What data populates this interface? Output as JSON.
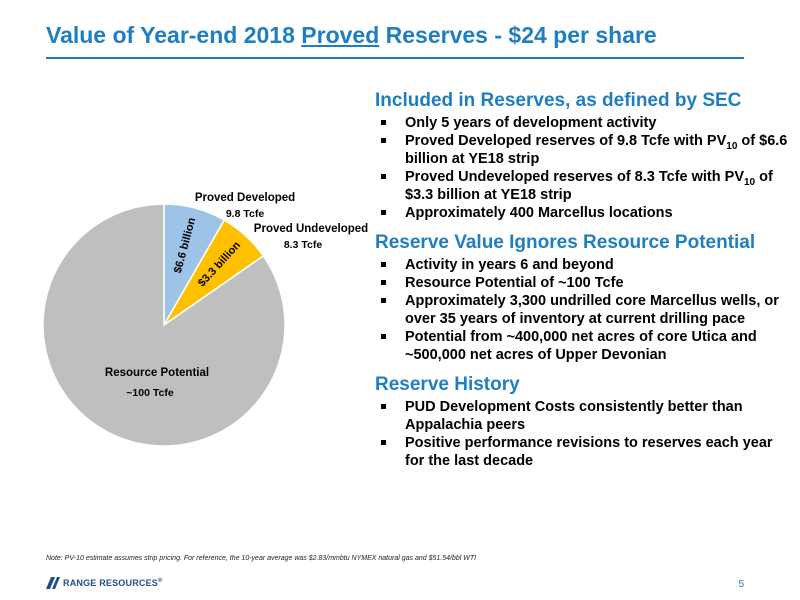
{
  "title": {
    "part1": "Value of Year-end 2018 ",
    "underlined": "Proved",
    "part2": " Reserves - $24 per share"
  },
  "chart_data": {
    "type": "pie",
    "unit": "Tcfe",
    "slices": [
      {
        "name": "Proved Developed",
        "value": 9.8,
        "value_label": "9.8 Tcfe",
        "inner_label": "$6.6 billion",
        "color": "#9dc3e6"
      },
      {
        "name": "Proved Undeveloped",
        "value": 8.3,
        "value_label": "8.3 Tcfe",
        "inner_label": "$3.3 billion",
        "color": "#ffc000"
      },
      {
        "name": "Resource Potential",
        "value": 100,
        "value_label": "~100 Tcfe",
        "inner_label": "",
        "color": "#bfbfbf"
      }
    ],
    "colors": {
      "background": "#ffffff"
    }
  },
  "sections": [
    {
      "heading": "Included in Reserves, as defined by SEC",
      "bullets": [
        {
          "text": "Only 5 years of development activity"
        },
        {
          "text": "Proved Developed reserves of 9.8 Tcfe with PV",
          "sub": "10",
          "tail": " of $6.6 billion at YE18 strip"
        },
        {
          "text": "Proved Undeveloped reserves of 8.3 Tcfe with PV",
          "sub": "10",
          "tail": " of $3.3 billion at YE18 strip"
        },
        {
          "text": "Approximately 400 Marcellus locations"
        }
      ]
    },
    {
      "heading": "Reserve Value Ignores Resource Potential",
      "bullets": [
        {
          "text": "Activity in years 6 and beyond"
        },
        {
          "text": "Resource Potential of ~100 Tcfe"
        },
        {
          "text": "Approximately 3,300 undrilled core Marcellus wells, or over 35 years of inventory at current drilling pace"
        },
        {
          "text": "Potential from ~400,000 net acres of core Utica and ~500,000 net acres of Upper Devonian"
        }
      ]
    },
    {
      "heading": "Reserve History",
      "bullets": [
        {
          "text": "PUD Development Costs consistently better than Appalachia peers"
        },
        {
          "text": "Positive performance revisions to reserves each year for the last decade"
        }
      ]
    }
  ],
  "footnote": "Note: PV-10 estimate assumes strip pricing. For reference, the 10-year average was $2.83/mmbtu NYMEX natural gas and $51.54/bbl WTI",
  "logo_text": "RANGE RESOURCES",
  "logo_mark": "®",
  "page_number": "5",
  "colors": {
    "accent": "#1f7ec2",
    "logo": "#1f4f8b"
  }
}
